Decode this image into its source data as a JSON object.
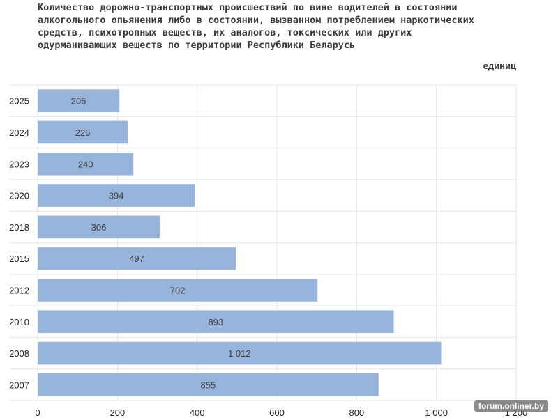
{
  "header": {
    "title": "Количество дорожно-транспортных происшествий по вине водителей в состоянии\nалкогольного опьянения либо в состоянии, вызванном потреблением наркотических\nсредств, психотропных веществ,  их аналогов, токсических или других\nодурманивающих веществ по территории Республики Беларусь",
    "unit": "единиц"
  },
  "watermark": "forum.onliner.by",
  "colors": {
    "bar": "#96b4dc",
    "grid": "#e4e4e4",
    "label": "#3f3f3f",
    "axis_text": "#222222"
  },
  "chart_data": {
    "type": "bar",
    "orientation": "horizontal",
    "categories": [
      "2025",
      "2024",
      "2023",
      "2020",
      "2018",
      "2015",
      "2012",
      "2010",
      "2008",
      "2007"
    ],
    "values": [
      205,
      226,
      240,
      394,
      306,
      497,
      702,
      893,
      1012,
      855
    ],
    "value_labels": [
      "205",
      "226",
      "240",
      "394",
      "306",
      "497",
      "702",
      "893",
      "1 012",
      "855"
    ],
    "xlim": [
      0,
      1200
    ],
    "xticks": [
      0,
      200,
      400,
      600,
      800,
      1000,
      1200
    ],
    "xtick_labels": [
      "0",
      "200",
      "400",
      "600",
      "800",
      "1 000",
      "1 200"
    ],
    "grid": true
  }
}
